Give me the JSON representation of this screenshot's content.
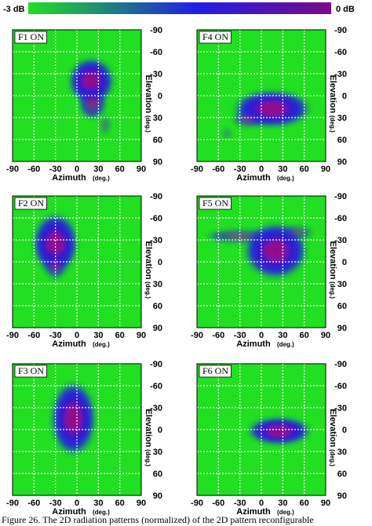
{
  "colorbar": {
    "min_label": "-3 dB",
    "max_label": "0 dB",
    "colors": [
      "#21df21",
      "#1f1fe6",
      "#7a0a8a"
    ]
  },
  "caption": "Figure 26.  The 2D radiation patterns (normalized) of the 2D pattern reconfigurable",
  "chart_data": [
    {
      "type": "heatmap",
      "panel_label": "F1 ON",
      "xlabel": "Azimuth",
      "xunit": "(deg.)",
      "ylabel": "Elevation",
      "yunit": "(deg.)",
      "xlim": [
        -90,
        90
      ],
      "ylim": [
        -90,
        90
      ],
      "xticks": [
        -90,
        -60,
        -30,
        0,
        30,
        60,
        90
      ],
      "yticks": [
        -90,
        -60,
        -30,
        0,
        30,
        60,
        90
      ],
      "y_inverted": true,
      "grid": true,
      "lobes": [
        {
          "az": 20,
          "el": -20,
          "saz": 20,
          "sel": 20,
          "level": 1.0
        },
        {
          "az": 22,
          "el": 10,
          "saz": 12,
          "sel": 14,
          "level": 0.8
        },
        {
          "az": 40,
          "el": 40,
          "saz": 4,
          "sel": 8,
          "level": 0.45
        }
      ]
    },
    {
      "type": "heatmap",
      "panel_label": "F4 ON",
      "xlabel": "Azimuth",
      "xunit": "(deg.)",
      "ylabel": "Elevation",
      "yunit": "(deg.)",
      "xlim": [
        -90,
        90
      ],
      "ylim": [
        -90,
        90
      ],
      "xticks": [
        -90,
        -60,
        -30,
        0,
        30,
        60,
        90
      ],
      "yticks": [
        -90,
        -60,
        -30,
        0,
        30,
        60,
        90
      ],
      "y_inverted": true,
      "grid": true,
      "lobes": [
        {
          "az": 15,
          "el": 18,
          "saz": 34,
          "sel": 16,
          "level": 1.0
        },
        {
          "az": -18,
          "el": 32,
          "saz": 14,
          "sel": 7,
          "level": 0.6
        },
        {
          "az": -48,
          "el": 52,
          "saz": 4,
          "sel": 4,
          "level": 0.4
        }
      ]
    },
    {
      "type": "heatmap",
      "panel_label": "F2 ON",
      "xlabel": "Azimuth",
      "xunit": "(deg.)",
      "ylabel": "Elevation",
      "yunit": "(deg.)",
      "xlim": [
        -90,
        90
      ],
      "ylim": [
        -90,
        90
      ],
      "xticks": [
        -90,
        -60,
        -30,
        0,
        30,
        60,
        90
      ],
      "yticks": [
        -90,
        -60,
        -30,
        0,
        30,
        60,
        90
      ],
      "y_inverted": true,
      "grid": true,
      "lobes": [
        {
          "az": -30,
          "el": -25,
          "saz": 20,
          "sel": 26,
          "level": 1.0
        },
        {
          "az": -30,
          "el": 5,
          "saz": 10,
          "sel": 12,
          "level": 0.6
        }
      ]
    },
    {
      "type": "heatmap",
      "panel_label": "F5 ON",
      "xlabel": "Azimuth",
      "xunit": "(deg.)",
      "ylabel": "Elevation",
      "yunit": "(deg.)",
      "xlim": [
        -90,
        90
      ],
      "ylim": [
        -90,
        90
      ],
      "xticks": [
        -90,
        -60,
        -30,
        0,
        30,
        60,
        90
      ],
      "yticks": [
        -90,
        -60,
        -30,
        0,
        30,
        60,
        90
      ],
      "y_inverted": true,
      "grid": true,
      "lobes": [
        {
          "az": 20,
          "el": -15,
          "saz": 28,
          "sel": 24,
          "level": 1.0
        },
        {
          "az": -30,
          "el": -35,
          "saz": 30,
          "sel": 6,
          "level": 0.6
        },
        {
          "az": 50,
          "el": -40,
          "saz": 14,
          "sel": 6,
          "level": 0.5
        }
      ]
    },
    {
      "type": "heatmap",
      "panel_label": "F3 ON",
      "xlabel": "Azimuth",
      "xunit": "(deg.)",
      "ylabel": "Elevation",
      "yunit": "(deg.)",
      "xlim": [
        -90,
        90
      ],
      "ylim": [
        -90,
        90
      ],
      "xticks": [
        -90,
        -60,
        -30,
        0,
        30,
        60,
        90
      ],
      "yticks": [
        -90,
        -60,
        -30,
        0,
        30,
        60,
        90
      ],
      "y_inverted": true,
      "grid": true,
      "lobes": [
        {
          "az": -5,
          "el": -15,
          "saz": 20,
          "sel": 32,
          "level": 1.0
        }
      ]
    },
    {
      "type": "heatmap",
      "panel_label": "F6 ON",
      "xlabel": "Azimuth",
      "xunit": "(deg.)",
      "ylabel": "Elevation",
      "yunit": "(deg.)",
      "xlim": [
        -90,
        90
      ],
      "ylim": [
        -90,
        90
      ],
      "xticks": [
        -90,
        -60,
        -30,
        0,
        30,
        60,
        90
      ],
      "yticks": [
        -90,
        -60,
        -30,
        0,
        30,
        60,
        90
      ],
      "y_inverted": true,
      "grid": true,
      "lobes": [
        {
          "az": 25,
          "el": 2,
          "saz": 28,
          "sel": 12,
          "level": 1.0
        }
      ]
    }
  ]
}
